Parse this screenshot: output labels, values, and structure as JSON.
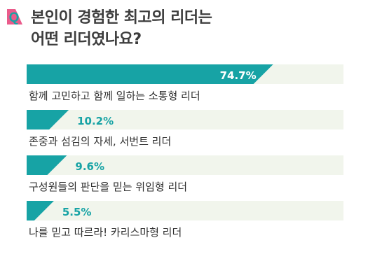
{
  "header": {
    "badge": "Q",
    "title_line1": "본인이 경험한 최고의 리더는",
    "title_line2": "어떤 리더였나요?"
  },
  "colors": {
    "accent": "#17a3a5",
    "track": "#f1f5ec",
    "badge_fill": "#ea5b8b",
    "badge_letter": "#17a3a5",
    "label": "#2f2f2f"
  },
  "chart_data": {
    "type": "bar",
    "orientation": "horizontal",
    "unit": "%",
    "categories": [
      "함께 고민하고 함께 일하는 소통형 리더",
      "존중과 섬김의 자세, 서번트 리더",
      "구성원들의 판단을 믿는 위임형 리더",
      "나를 믿고 따르라! 카리스마형 리더"
    ],
    "values": [
      74.7,
      10.2,
      9.6,
      5.5
    ],
    "value_labels": [
      "74.7%",
      "10.2%",
      "9.6%",
      "5.5%"
    ],
    "xlim": [
      0,
      100
    ],
    "grid": false,
    "legend": "none"
  }
}
